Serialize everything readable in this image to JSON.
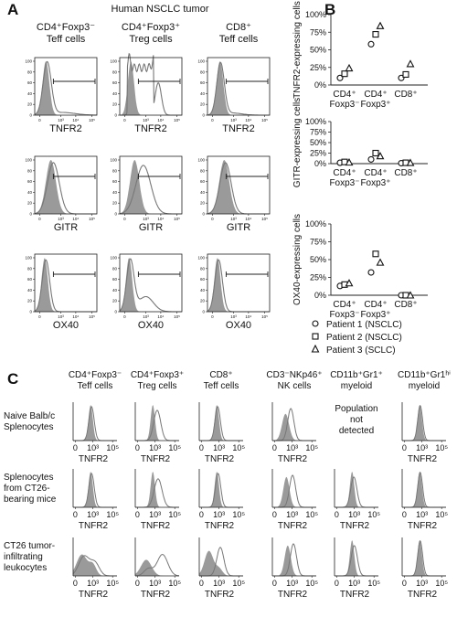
{
  "panels": [
    {
      "letter": "A",
      "title": "Human NSCLC tumor",
      "col_titles": [
        [
          "CD4⁺Foxp3⁻",
          "Teff cells"
        ],
        [
          "CD4⁺Foxp3⁺",
          "Treg cells"
        ],
        [
          "CD8⁺",
          "Teff cells"
        ]
      ]
    },
    {
      "letter": "B"
    },
    {
      "letter": "C",
      "col_titles": [
        [
          "CD4⁺Foxp3⁻",
          "Teff cells"
        ],
        [
          "CD4⁺Foxp3⁺",
          "Treg cells"
        ],
        [
          "CD8⁺",
          "Teff cells"
        ],
        [
          "CD3⁻NKp46⁺",
          "NK cells"
        ],
        [
          "CD11b⁺Gr1⁺",
          "myeloid"
        ],
        [
          "CD11b⁺Gr1ʰⁱ",
          "myeloid"
        ]
      ],
      "row_titles": [
        [
          "Naive Balb/c",
          "Splenocytes"
        ],
        [
          "Splenocytes",
          "from CT26-",
          "bearing mice"
        ],
        [
          "CT26 tumor-",
          "infiltrating",
          "leukocytes"
        ]
      ],
      "not_detected": [
        "Population",
        "not",
        "detected"
      ]
    }
  ],
  "colors": {
    "isotype_fill": "#9a9a9a",
    "stain_line": "#777777",
    "axis": "#222222"
  },
  "chart_data": [
    {
      "type": "area",
      "title": "Human NSCLC tumor",
      "rows": [
        "TNFR2",
        "GITR",
        "OX40"
      ],
      "columns": [
        "CD4⁺Foxp3⁻ Teff cells",
        "CD4⁺Foxp3⁺ Treg cells",
        "CD8⁺ Teff cells"
      ],
      "xticks": [
        "0",
        "10³",
        "10⁴",
        "10⁵"
      ],
      "yticks": [
        "0",
        "20",
        "40",
        "60",
        "80",
        "100"
      ],
      "ylim": [
        0,
        100
      ],
      "series": [
        {
          "name": "isotype",
          "type": "filled"
        },
        {
          "name": "stain",
          "type": "open-line"
        }
      ],
      "gate_marker": "horizontal bar"
    },
    {
      "type": "scatter",
      "categories": [
        [
          "CD4⁺",
          "Foxp3⁻"
        ],
        [
          "CD4⁺",
          "Foxp3⁺"
        ],
        [
          "CD8⁺"
        ]
      ],
      "yticks": [
        "0%",
        "25%",
        "50%",
        "75%",
        "100%"
      ],
      "ylim": [
        0,
        100
      ],
      "legend": [
        {
          "marker": "circle",
          "label": "Patient 1 (NSCLC)"
        },
        {
          "marker": "square",
          "label": "Patient 2 (NSCLC)"
        },
        {
          "marker": "triangle",
          "label": "Patient 3 (SCLC)"
        }
      ],
      "subplots": [
        {
          "ylabel": "TNFR2-expressing cells",
          "points": {
            "circle": [
              10,
              58,
              10
            ],
            "square": [
              16,
              72,
              15
            ],
            "triangle": [
              24,
              84,
              30
            ]
          }
        },
        {
          "ylabel": "GITR-expressing cells",
          "points": {
            "circle": [
              2,
              10,
              1
            ],
            "square": [
              4,
              25,
              2
            ],
            "triangle": [
              3,
              18,
              2
            ]
          }
        },
        {
          "ylabel": "OX40-expressing cells",
          "points": {
            "circle": [
              13,
              32,
              0
            ],
            "square": [
              15,
              58,
              0
            ],
            "triangle": [
              17,
              46,
              0
            ]
          }
        }
      ]
    },
    {
      "type": "area",
      "xlabel": "TNFR2",
      "xticks": [
        "0",
        "10³",
        "10⁵"
      ],
      "series": [
        {
          "name": "isotype",
          "type": "filled"
        },
        {
          "name": "stain",
          "type": "open-line"
        }
      ]
    }
  ]
}
